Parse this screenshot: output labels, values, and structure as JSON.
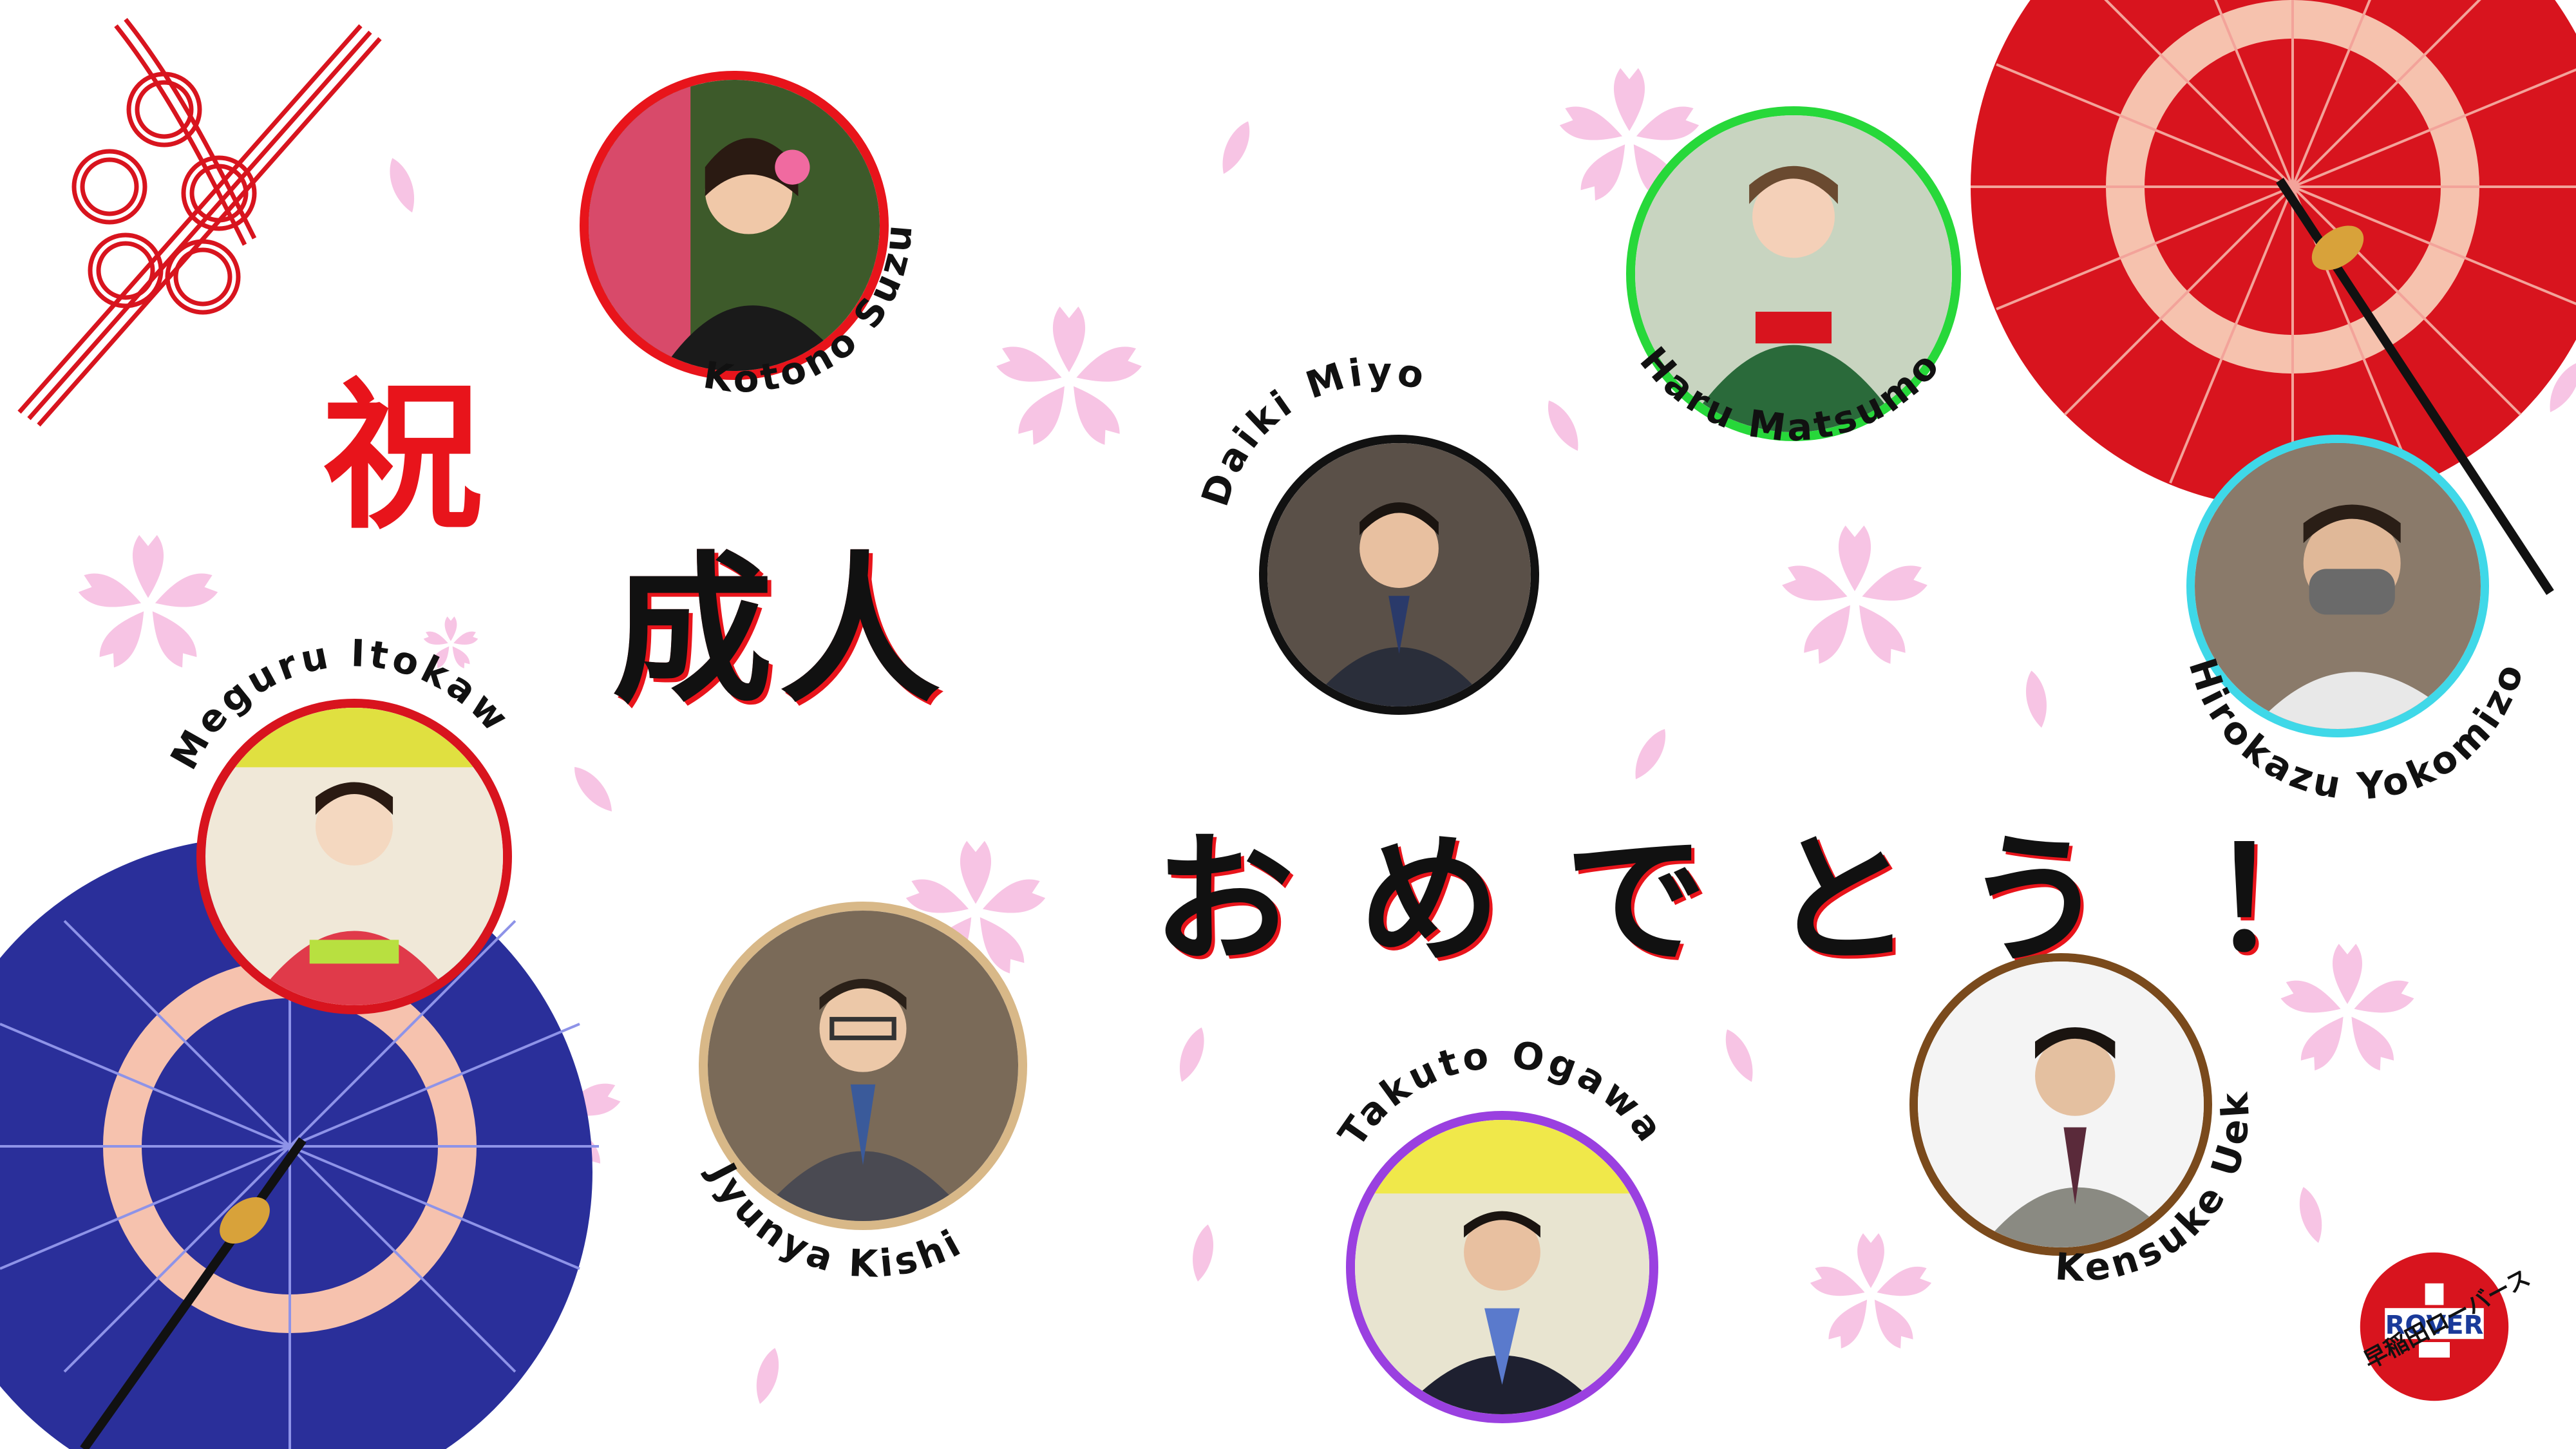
{
  "title": {
    "line1": "祝",
    "line2": "成人",
    "line3": [
      "お",
      "め",
      "で",
      "と",
      "う",
      "！"
    ]
  },
  "members": [
    {
      "name": "Kotono Suzuki",
      "ring_color": "#e8141b"
    },
    {
      "name": "Daiki Miyo",
      "ring_color": "#111111"
    },
    {
      "name": "Haru Matsumoto",
      "ring_color": "#27d83a"
    },
    {
      "name": "Hirokazu Yokomizo",
      "ring_color": "#3fd8e8"
    },
    {
      "name": "Meguru Itokawa",
      "ring_color": "#d8141e"
    },
    {
      "name": "Jyunya Kishi",
      "ring_color": "#d8b888"
    },
    {
      "name": "Takuto Ogawa",
      "ring_color": "#9a40e0"
    },
    {
      "name": "Kensuke Ueki",
      "ring_color": "#7a4a1c"
    }
  ],
  "logo": {
    "badge_text": "ROVER",
    "caption": "早稲田ローバース"
  },
  "colors": {
    "title_red": "#e8141b",
    "title_black": "#111111",
    "sakura": "#f7c4e4",
    "umbrella_red": "#d8141e",
    "umbrella_blue": "#2a2f9a"
  }
}
